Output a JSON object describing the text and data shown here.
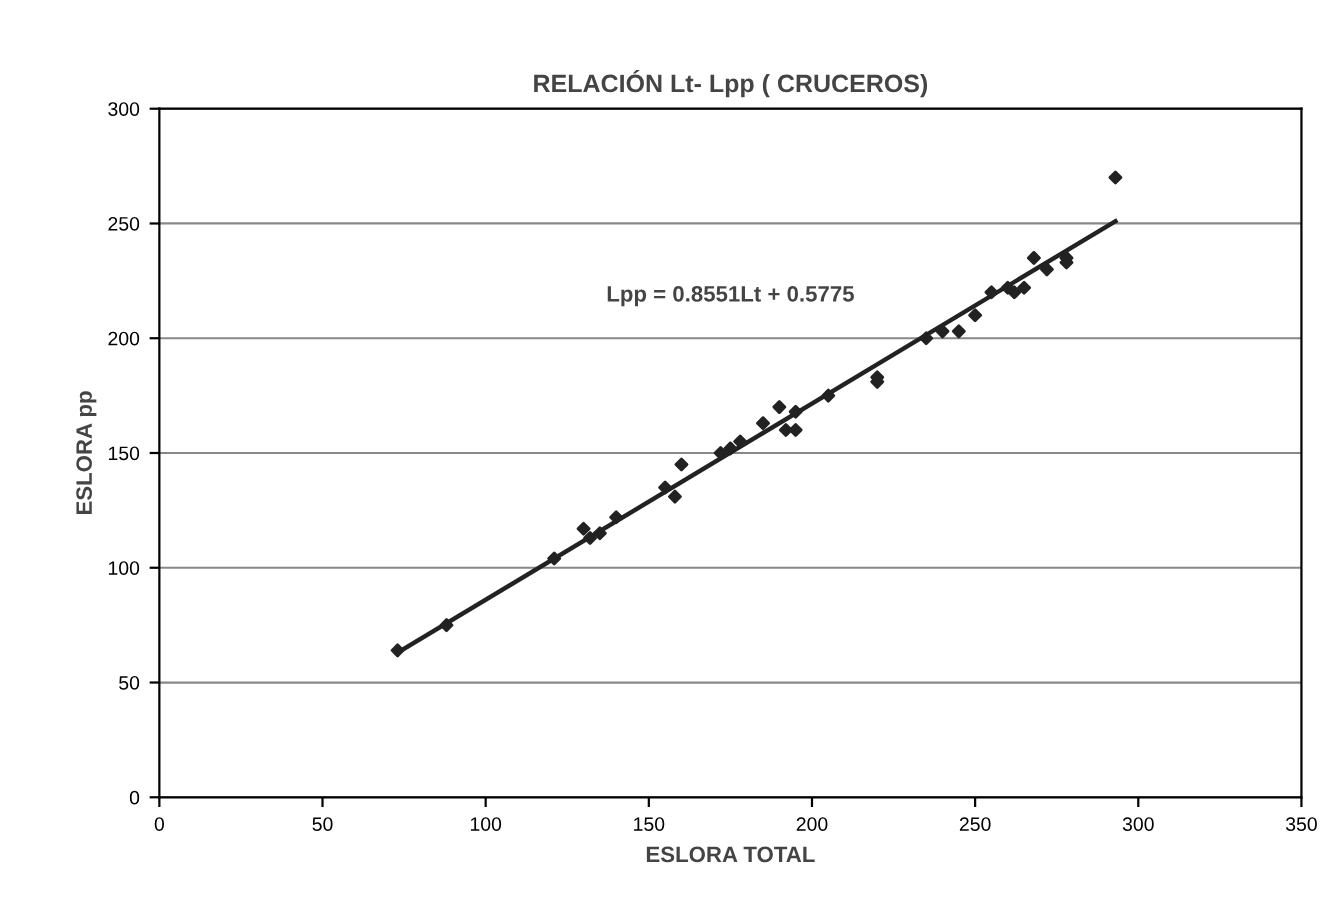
{
  "chart_data": {
    "type": "scatter",
    "title": "RELACIÓN Lt- Lpp ( CRUCEROS)",
    "xlabel": "ESLORA TOTAL",
    "ylabel": "ESLORA pp",
    "series": [
      {
        "color": "#222222",
        "marker": "diamond",
        "x": [
          73,
          88,
          121,
          130,
          132,
          135,
          140,
          155,
          158,
          160,
          172,
          175,
          178,
          185,
          190,
          192,
          195,
          195,
          205,
          220,
          220,
          235,
          240,
          245,
          250,
          255,
          260,
          262,
          265,
          268,
          272,
          278,
          278,
          293
        ],
        "values": [
          64,
          75,
          104,
          117,
          113,
          115,
          122,
          135,
          131,
          145,
          150,
          152,
          155,
          163,
          170,
          160,
          168,
          160,
          175,
          183,
          181,
          200,
          203,
          203,
          210,
          220,
          222,
          220,
          222,
          235,
          230,
          233,
          235,
          270
        ]
      },
      {
        "type": "line",
        "color": "#222222",
        "marker": "none",
        "x": [
          73,
          293
        ],
        "values": [
          63,
          251
        ]
      }
    ],
    "annotations": [
      "Lpp = 0.8551Lt + 0.5775"
    ],
    "xlim": [
      0,
      350
    ],
    "xticks": [
      0,
      50,
      100,
      150,
      200,
      250,
      300,
      350
    ],
    "ylim": [
      0,
      300
    ],
    "yticks": [
      0,
      50,
      100,
      150,
      200,
      250,
      300
    ],
    "grid": "y",
    "legend": false
  }
}
